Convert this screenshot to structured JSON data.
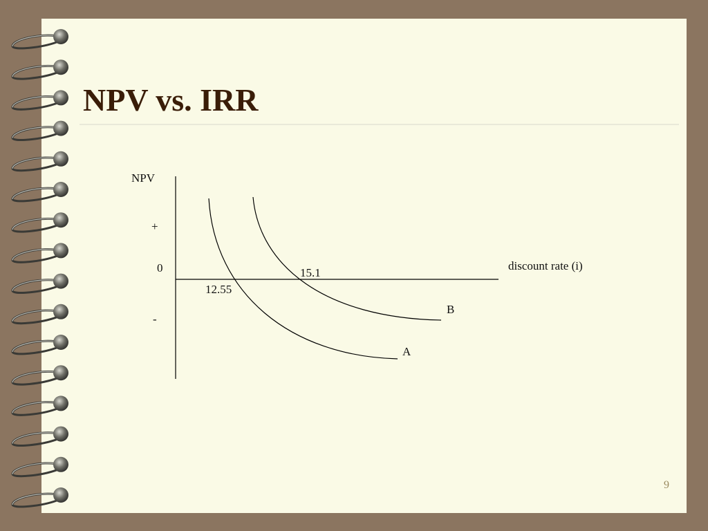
{
  "slide": {
    "title": "NPV vs. IRR",
    "page_number": "9"
  },
  "diagram": {
    "y_axis_label": "NPV",
    "plus_label": "+",
    "zero_label": "0",
    "minus_label": "-",
    "x_axis_label": "discount rate (i)",
    "irr_b_label": "15.1",
    "irr_a_label": "12.55",
    "curve_b_label": "B",
    "curve_a_label": "A"
  }
}
